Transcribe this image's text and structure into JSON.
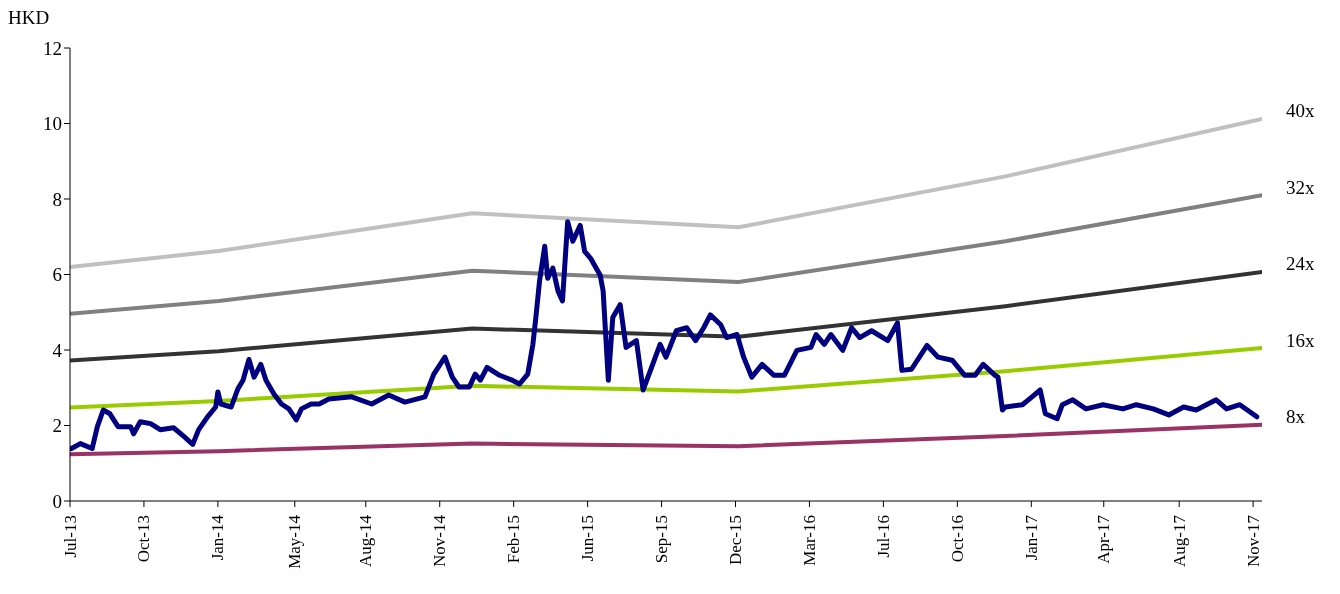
{
  "chart_data": {
    "type": "line",
    "ylabel": "HKD",
    "xlim": [
      "2013-07-01",
      "2017-11-29"
    ],
    "xticks": [
      {
        "value": "2013-07-01",
        "label": "Jul-13"
      },
      {
        "value": "2013-10-09",
        "label": "Oct-13"
      },
      {
        "value": "2014-01-17",
        "label": "Jan-14"
      },
      {
        "value": "2014-05-01",
        "label": "May-14"
      },
      {
        "value": "2014-08-05",
        "label": "Aug-14"
      },
      {
        "value": "2014-11-13",
        "label": "Nov-14"
      },
      {
        "value": "2015-02-21",
        "label": "Feb-15"
      },
      {
        "value": "2015-06-01",
        "label": "Jun-15"
      },
      {
        "value": "2015-09-09",
        "label": "Sep-15"
      },
      {
        "value": "2015-12-18",
        "label": "Dec-15"
      },
      {
        "value": "2016-03-27",
        "label": "Mar-16"
      },
      {
        "value": "2016-07-05",
        "label": "Jul-16"
      },
      {
        "value": "2016-10-13",
        "label": "Oct-16"
      },
      {
        "value": "2017-01-21",
        "label": "Jan-17"
      },
      {
        "value": "2017-04-29",
        "label": "Apr-17"
      },
      {
        "value": "2017-08-09",
        "label": "Aug-17"
      },
      {
        "value": "2017-11-17",
        "label": "Nov-17"
      }
    ],
    "ylim": [
      0,
      12
    ],
    "yticks": [
      0,
      2,
      4,
      6,
      8,
      10,
      12
    ],
    "grid": false,
    "marker": "none",
    "line_style": "solid",
    "series": [
      {
        "name": "40x",
        "color": "#c0c0c0",
        "x": [
          "2013-07-01",
          "2014-01-18",
          "2014-12-27",
          "2015-12-22",
          "2016-12-17",
          "2017-11-29"
        ],
        "values": [
          6.2,
          6.62,
          7.62,
          7.25,
          8.6,
          10.12
        ]
      },
      {
        "name": "32x",
        "color": "#808080",
        "x": [
          "2013-07-01",
          "2014-01-18",
          "2014-12-27",
          "2015-12-22",
          "2016-12-17",
          "2017-11-29"
        ],
        "values": [
          4.96,
          5.3,
          6.1,
          5.8,
          6.88,
          8.1
        ]
      },
      {
        "name": "24x",
        "color": "#333333",
        "x": [
          "2013-07-01",
          "2014-01-18",
          "2014-12-27",
          "2015-12-22",
          "2016-12-17",
          "2017-11-29"
        ],
        "values": [
          3.72,
          3.97,
          4.57,
          4.35,
          5.16,
          6.07
        ]
      },
      {
        "name": "16x",
        "color": "#99cc00",
        "x": [
          "2013-07-01",
          "2014-01-18",
          "2014-12-27",
          "2015-12-22",
          "2016-12-17",
          "2017-11-29"
        ],
        "values": [
          2.48,
          2.65,
          3.05,
          2.9,
          3.44,
          4.05
        ]
      },
      {
        "name": "8x",
        "color": "#993366",
        "x": [
          "2013-07-01",
          "2014-01-18",
          "2014-12-27",
          "2015-12-22",
          "2016-12-17",
          "2017-11-29"
        ],
        "values": [
          1.24,
          1.32,
          1.52,
          1.45,
          1.72,
          2.02
        ]
      },
      {
        "color": "#000080",
        "x": [
          "2013-07-03",
          "2013-07-15",
          "2013-07-31",
          "2013-08-07",
          "2013-08-15",
          "2013-08-24",
          "2013-09-04",
          "2013-09-21",
          "2013-09-25",
          "2013-10-04",
          "2013-10-18",
          "2013-10-31",
          "2013-11-18",
          "2013-12-02",
          "2013-12-14",
          "2013-12-22",
          "2014-01-03",
          "2014-01-14",
          "2014-01-17",
          "2014-01-21",
          "2014-02-04",
          "2014-02-13",
          "2014-02-20",
          "2014-02-28",
          "2014-03-07",
          "2014-03-16",
          "2014-03-23",
          "2014-04-03",
          "2014-04-13",
          "2014-04-23",
          "2014-05-03",
          "2014-05-10",
          "2014-05-23",
          "2014-06-03",
          "2014-06-16",
          "2014-07-17",
          "2014-08-13",
          "2014-09-05",
          "2014-09-27",
          "2014-10-24",
          "2014-11-05",
          "2014-11-20",
          "2014-11-30",
          "2014-12-09",
          "2014-12-23",
          "2014-12-31",
          "2015-01-07",
          "2015-01-16",
          "2015-02-02",
          "2015-02-19",
          "2015-03-01",
          "2015-03-12",
          "2015-03-19",
          "2015-03-23",
          "2015-03-28",
          "2015-04-04",
          "2015-04-08",
          "2015-04-15",
          "2015-04-22",
          "2015-04-28",
          "2015-05-05",
          "2015-05-12",
          "2015-05-22",
          "2015-05-28",
          "2015-06-05",
          "2015-06-18",
          "2015-06-22",
          "2015-06-29",
          "2015-07-05",
          "2015-07-15",
          "2015-07-23",
          "2015-08-06",
          "2015-08-15",
          "2015-08-25",
          "2015-09-07",
          "2015-09-15",
          "2015-09-29",
          "2015-10-13",
          "2015-10-25",
          "2015-11-05",
          "2015-11-14",
          "2015-11-28",
          "2015-12-06",
          "2015-12-20",
          "2015-12-29",
          "2016-01-09",
          "2016-01-23",
          "2016-02-08",
          "2016-02-22",
          "2016-03-10",
          "2016-03-29",
          "2016-04-05",
          "2016-04-16",
          "2016-04-25",
          "2016-05-11",
          "2016-05-23",
          "2016-06-03",
          "2016-06-19",
          "2016-07-11",
          "2016-07-24",
          "2016-07-30",
          "2016-08-12",
          "2016-09-02",
          "2016-09-17",
          "2016-10-06",
          "2016-10-23",
          "2016-11-06",
          "2016-11-17",
          "2016-12-03",
          "2016-12-07",
          "2016-12-13",
          "2016-12-17",
          "2017-01-09",
          "2017-01-22",
          "2017-02-02",
          "2017-02-09",
          "2017-02-25",
          "2017-03-04",
          "2017-03-18",
          "2017-04-05",
          "2017-04-28",
          "2017-05-25",
          "2017-06-12",
          "2017-07-05",
          "2017-07-26",
          "2017-08-15",
          "2017-09-01",
          "2017-09-28",
          "2017-10-12",
          "2017-10-30",
          "2017-11-22"
        ],
        "values": [
          1.39,
          1.52,
          1.39,
          1.97,
          2.41,
          2.31,
          1.97,
          1.97,
          1.78,
          2.1,
          2.05,
          1.89,
          1.94,
          1.71,
          1.5,
          1.89,
          2.23,
          2.49,
          2.89,
          2.57,
          2.49,
          2.97,
          3.2,
          3.75,
          3.28,
          3.62,
          3.2,
          2.83,
          2.57,
          2.44,
          2.15,
          2.44,
          2.57,
          2.57,
          2.7,
          2.76,
          2.57,
          2.81,
          2.62,
          2.76,
          3.36,
          3.81,
          3.28,
          3.02,
          3.02,
          3.36,
          3.2,
          3.54,
          3.33,
          3.2,
          3.1,
          3.36,
          4.15,
          4.86,
          5.83,
          6.75,
          5.9,
          6.17,
          5.56,
          5.3,
          7.4,
          6.88,
          7.3,
          6.61,
          6.43,
          5.98,
          5.56,
          3.2,
          4.86,
          5.2,
          4.07,
          4.25,
          2.94,
          3.46,
          4.15,
          3.81,
          4.51,
          4.59,
          4.25,
          4.59,
          4.93,
          4.67,
          4.33,
          4.41,
          3.81,
          3.28,
          3.62,
          3.33,
          3.33,
          3.99,
          4.07,
          4.41,
          4.15,
          4.41,
          3.99,
          4.59,
          4.33,
          4.51,
          4.25,
          4.72,
          3.46,
          3.49,
          4.12,
          3.81,
          3.73,
          3.33,
          3.33,
          3.62,
          3.33,
          3.28,
          2.41,
          2.49,
          2.55,
          2.76,
          2.94,
          2.31,
          2.18,
          2.55,
          2.68,
          2.44,
          2.55,
          2.44,
          2.55,
          2.44,
          2.28,
          2.49,
          2.41,
          2.68,
          2.44,
          2.55,
          2.23
        ]
      }
    ]
  }
}
